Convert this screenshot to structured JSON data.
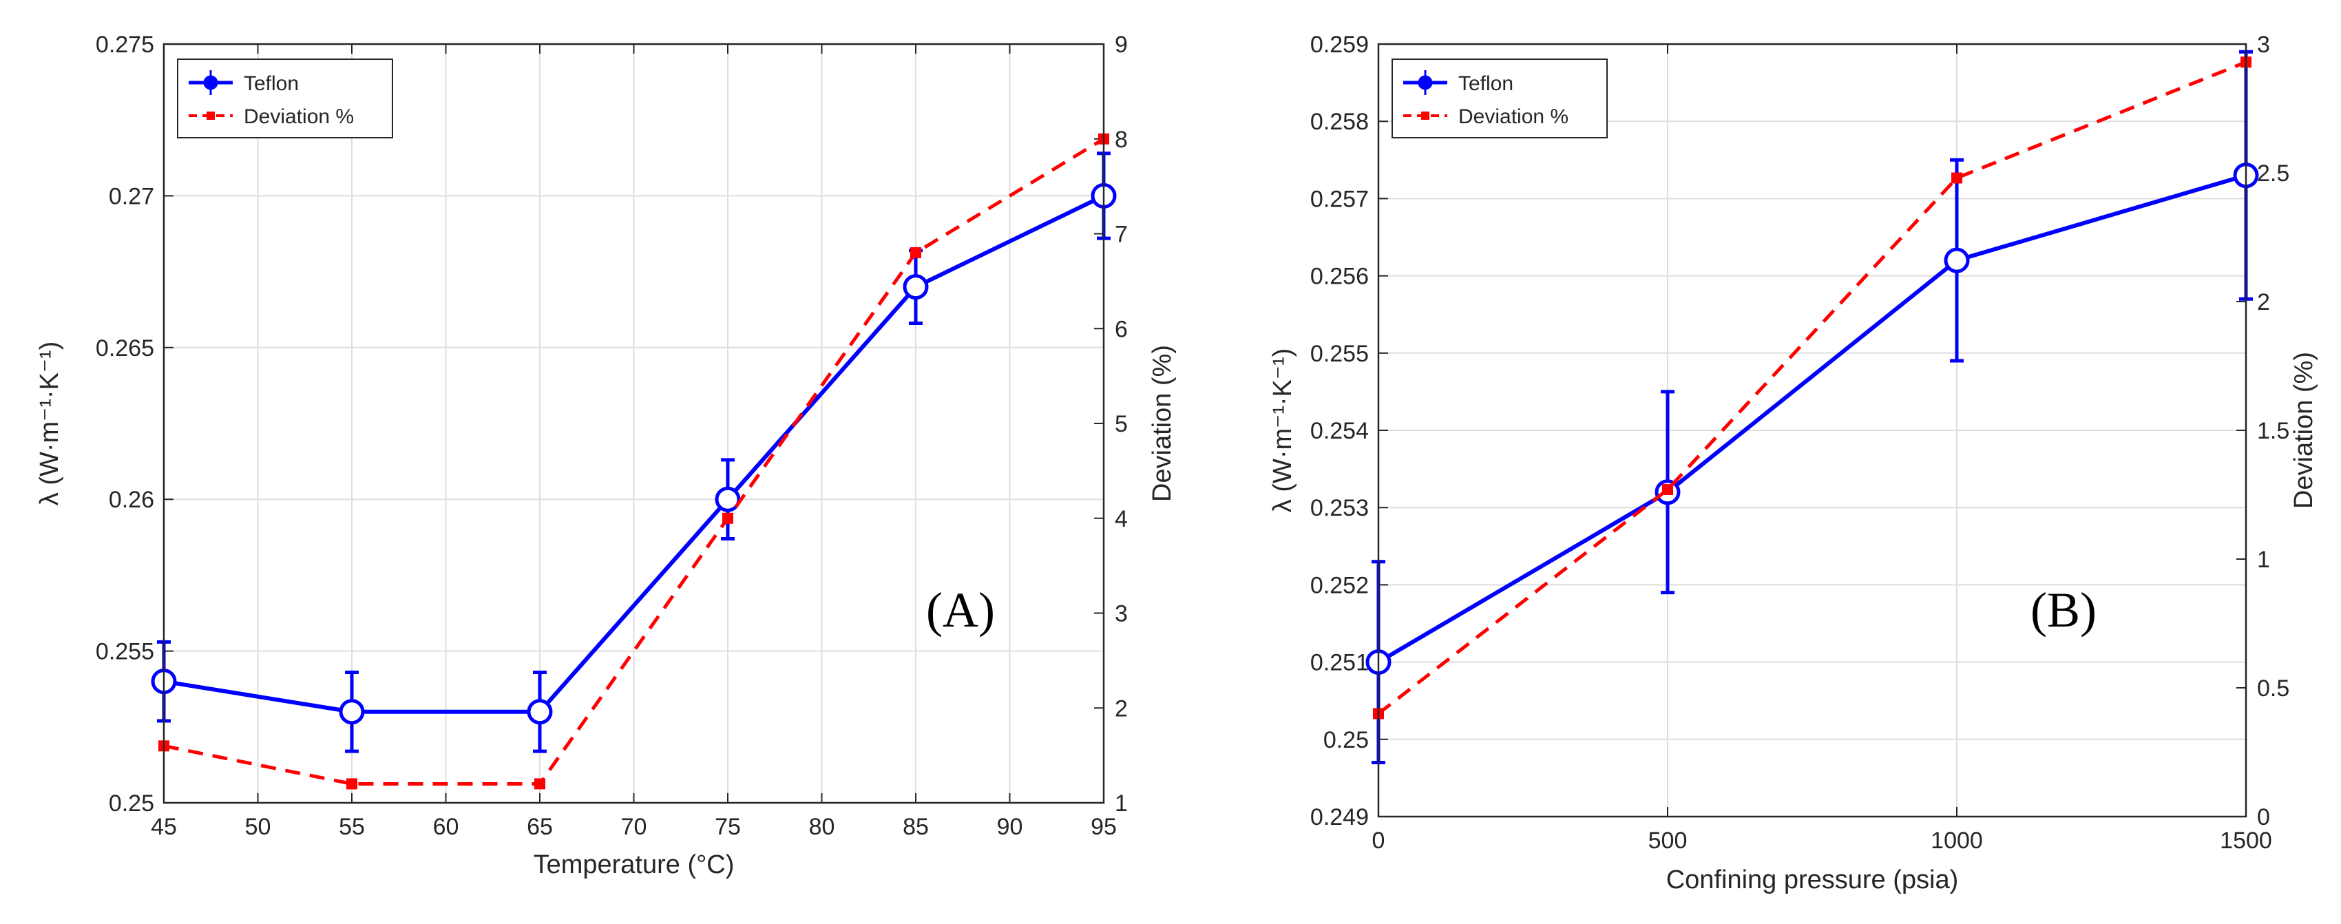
{
  "chart_data": [
    {
      "type": "line",
      "panel_label": "(A)",
      "xlabel": "Temperature (°C)",
      "ylabel_left": "λ (W·m⁻¹·K⁻¹)",
      "ylabel_right": "Deviation (%)",
      "xlim": [
        45,
        95
      ],
      "ylim_left": [
        0.25,
        0.275
      ],
      "ylim_right": [
        1,
        9
      ],
      "xticks": [
        45,
        50,
        55,
        60,
        65,
        70,
        75,
        80,
        85,
        90,
        95
      ],
      "yticks_left": [
        0.25,
        0.255,
        0.26,
        0.265,
        0.27,
        0.275
      ],
      "yticks_right": [
        1,
        2,
        3,
        4,
        5,
        6,
        7,
        8,
        9
      ],
      "xtick_labels": [
        "45",
        "50",
        "55",
        "60",
        "65",
        "70",
        "75",
        "80",
        "85",
        "90",
        "95"
      ],
      "ytick_labels_left": [
        "0.25",
        "0.255",
        "0.26",
        "0.265",
        "0.27",
        "0.275"
      ],
      "ytick_labels_right": [
        "1",
        "2",
        "3",
        "4",
        "5",
        "6",
        "7",
        "8",
        "9"
      ],
      "grid": true,
      "legend_position": "top-left",
      "series": [
        {
          "name": "Teflon",
          "axis": "left",
          "color": "#0000ff",
          "style": "solid",
          "marker": "circle",
          "x": [
            45,
            55,
            65,
            75,
            85,
            95
          ],
          "y": [
            0.254,
            0.253,
            0.253,
            0.26,
            0.267,
            0.27
          ],
          "error": [
            0.0013,
            0.0013,
            0.0013,
            0.0013,
            0.0012,
            0.0014
          ]
        },
        {
          "name": "Deviation %",
          "axis": "right",
          "color": "#ff0000",
          "style": "dashed",
          "marker": "square",
          "x": [
            45,
            55,
            65,
            75,
            85,
            95
          ],
          "y": [
            1.6,
            1.2,
            1.2,
            4.0,
            6.8,
            8.0
          ]
        }
      ]
    },
    {
      "type": "line",
      "panel_label": "(B)",
      "xlabel": "Confining pressure (psia)",
      "ylabel_left": "λ (W·m⁻¹·K⁻¹)",
      "ylabel_right": "Deviation (%)",
      "xlim": [
        0,
        1500
      ],
      "ylim_left": [
        0.249,
        0.259
      ],
      "ylim_right": [
        0,
        3
      ],
      "xticks": [
        0,
        500,
        1000,
        1500
      ],
      "yticks_left": [
        0.249,
        0.25,
        0.251,
        0.252,
        0.253,
        0.254,
        0.255,
        0.256,
        0.257,
        0.258,
        0.259
      ],
      "yticks_right": [
        0,
        0.5,
        1,
        1.5,
        2,
        2.5,
        3
      ],
      "xtick_labels": [
        "0",
        "500",
        "1000",
        "1500"
      ],
      "ytick_labels_left": [
        "0.249",
        "0.25",
        "0.251",
        "0.252",
        "0.253",
        "0.254",
        "0.255",
        "0.256",
        "0.257",
        "0.258",
        "0.259"
      ],
      "ytick_labels_right": [
        "0",
        "0.5",
        "1",
        "1.5",
        "2",
        "2.5",
        "3"
      ],
      "grid": true,
      "legend_position": "top-left",
      "series": [
        {
          "name": "Teflon",
          "axis": "left",
          "color": "#0000ff",
          "style": "solid",
          "marker": "circle",
          "x": [
            0,
            500,
            1000,
            1500
          ],
          "y": [
            0.251,
            0.2532,
            0.2562,
            0.2573
          ],
          "error": [
            0.0013,
            0.0013,
            0.0013,
            0.0016
          ]
        },
        {
          "name": "Deviation %",
          "axis": "right",
          "color": "#ff0000",
          "style": "dashed",
          "marker": "square",
          "x": [
            0,
            500,
            1000,
            1500
          ],
          "y": [
            0.4,
            1.27,
            2.48,
            2.93
          ]
        }
      ]
    }
  ]
}
